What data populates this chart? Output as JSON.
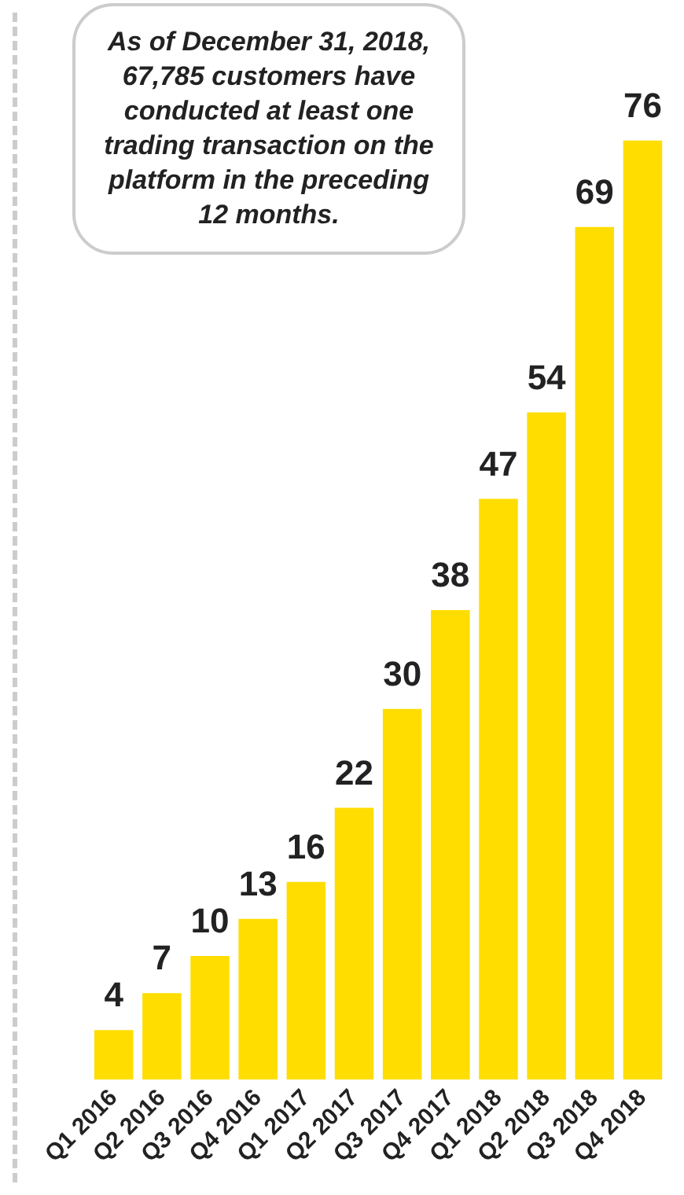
{
  "chart_data": {
    "type": "bar",
    "categories": [
      "Q1 2016",
      "Q2 2016",
      "Q3 2016",
      "Q4 2016",
      "Q1 2017",
      "Q2 2017",
      "Q3 2017",
      "Q4 2017",
      "Q1 2018",
      "Q2 2018",
      "Q3 2018",
      "Q4 2018"
    ],
    "values": [
      4,
      7,
      10,
      13,
      16,
      22,
      30,
      38,
      47,
      54,
      69,
      76
    ],
    "color": "#ffdd00",
    "data_labels": true,
    "grid": false,
    "legend": false,
    "tick_labels": "x",
    "annotations": [
      "As of December 31, 2018, 67,785 customers have conducted at least one trading transaction on the platform in the preceding 12 months."
    ]
  }
}
